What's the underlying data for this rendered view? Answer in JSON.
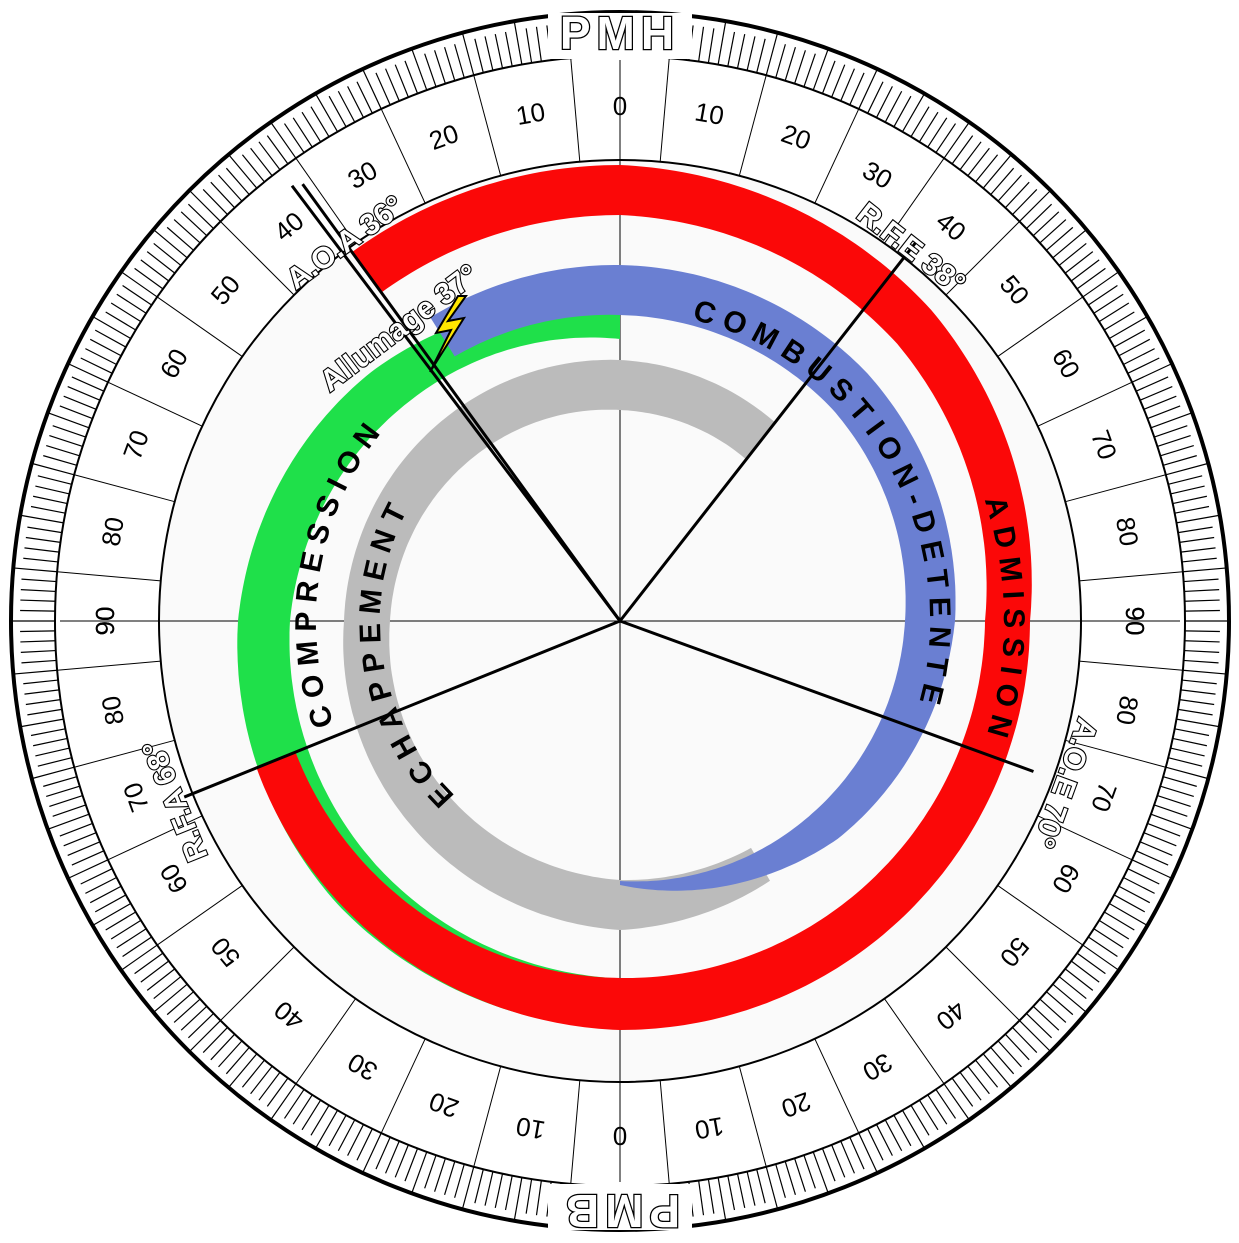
{
  "header": {
    "top": "PMH",
    "bottom": "PMB"
  },
  "scale": {
    "top": 0,
    "bottom": 0,
    "upper_right": [
      10,
      20,
      30,
      40,
      50,
      60,
      70,
      80,
      90
    ],
    "upper_left": [
      10,
      20,
      30,
      40,
      50,
      60,
      70,
      80,
      90
    ],
    "lower_right": [
      10,
      20,
      30,
      40,
      50,
      60,
      70,
      80,
      90
    ],
    "lower_left": [
      10,
      20,
      30,
      40,
      50,
      60,
      70,
      80,
      90
    ]
  },
  "events": {
    "aoa": "A.O.A 36°",
    "allumage": "Allumage 37°",
    "rfe": "R.F.E 38°",
    "aoe": "A.O.E 70°",
    "rfa": "R.F.A 68°"
  },
  "phases": {
    "admission": "ADMISSION",
    "compression": "COMPRESSION",
    "combustion": "COMBUSTION-DETENTE",
    "echappement": "ECHAPPEMENT"
  }
}
